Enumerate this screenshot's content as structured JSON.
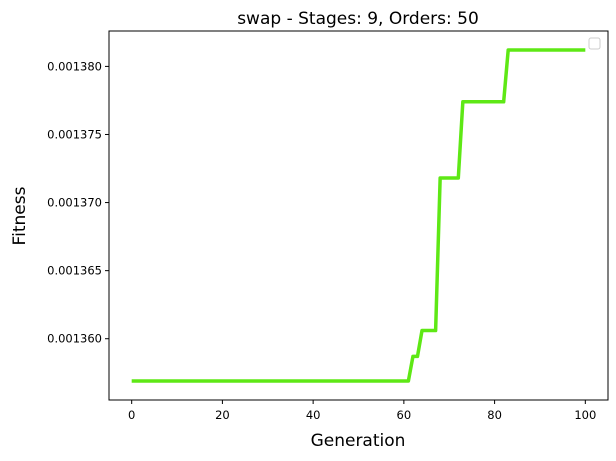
{
  "chart_data": {
    "type": "line",
    "title": "swap - Stages: 9, Orders: 50",
    "xlabel": "Generation",
    "ylabel": "Fitness",
    "xlim": [
      -5,
      105
    ],
    "ylim": [
      0.0013555,
      0.0013826
    ],
    "xticks": [
      0,
      20,
      40,
      60,
      80,
      100
    ],
    "yticks": [
      0.00136,
      0.001365,
      0.00137,
      0.001375,
      0.00138
    ],
    "ytick_labels": [
      "0.001360",
      "0.001365",
      "0.001370",
      "0.001375",
      "0.001380"
    ],
    "grid": false,
    "legend": "top-right (empty)",
    "series": [
      {
        "color": "#5ee815",
        "x": [
          0,
          61,
          62,
          63,
          64,
          65,
          66,
          67,
          68,
          69,
          70,
          71,
          72,
          73,
          74,
          75,
          76,
          77,
          78,
          79,
          80,
          81,
          82,
          83,
          84,
          100
        ],
        "y": [
          0.0013569,
          0.0013569,
          0.0013587,
          0.0013587,
          0.0013606,
          0.0013606,
          0.0013606,
          0.0013606,
          0.0013718,
          0.0013718,
          0.0013718,
          0.0013718,
          0.0013718,
          0.0013774,
          0.0013774,
          0.0013774,
          0.0013774,
          0.0013774,
          0.0013774,
          0.0013774,
          0.0013774,
          0.0013774,
          0.0013774,
          0.0013812,
          0.0013812,
          0.0013812
        ]
      }
    ]
  }
}
